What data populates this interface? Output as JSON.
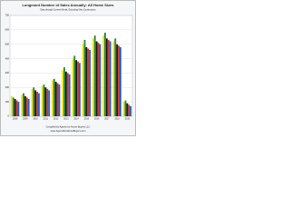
{
  "chart_data": {
    "type": "bar",
    "title": "Longmont Number of Sales Annually: All Home Sizes",
    "subtitle": "Data through Current Month, Excluding New Construction",
    "categories": [
      "2008",
      "2009",
      "2010",
      "2011",
      "2012",
      "2013",
      "2014",
      "2015",
      "2016",
      "2017",
      "2018",
      "2019"
    ],
    "series": [
      {
        "color": "#f2e51c",
        "values": [
          140,
          150,
          190,
          210,
          250,
          320,
          400,
          500,
          540,
          560,
          520,
          100
        ]
      },
      {
        "color": "#2e8b3a",
        "values": [
          130,
          160,
          200,
          220,
          260,
          340,
          420,
          530,
          560,
          580,
          540,
          110
        ]
      },
      {
        "color": "#1a1a1a",
        "values": [
          120,
          140,
          180,
          200,
          240,
          310,
          390,
          480,
          520,
          540,
          500,
          90
        ]
      },
      {
        "color": "#c8382c",
        "values": [
          110,
          130,
          170,
          190,
          230,
          300,
          380,
          470,
          510,
          530,
          490,
          80
        ]
      },
      {
        "color": "#2a5fbf",
        "values": [
          100,
          120,
          160,
          180,
          220,
          290,
          370,
          460,
          500,
          520,
          480,
          70
        ]
      }
    ],
    "ylim": [
      0,
      700
    ],
    "yticks": [
      0,
      100,
      200,
      300,
      400,
      500,
      600,
      700
    ],
    "grid": true,
    "footer": [
      "Compiled by Agents for Home Buyers LLC",
      "www.AgentsForHomeBuyers.com"
    ]
  }
}
